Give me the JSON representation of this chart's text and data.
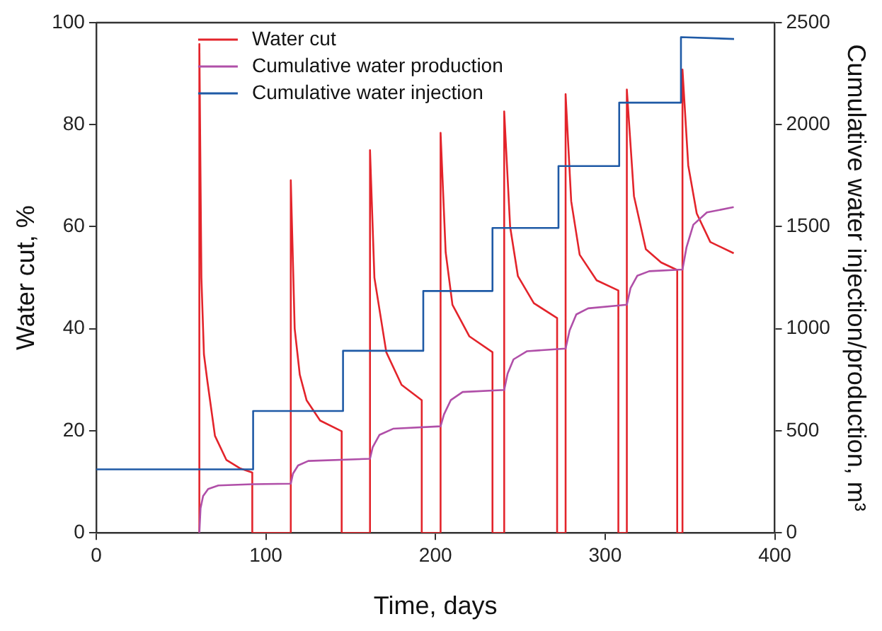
{
  "chart_data": {
    "type": "line",
    "xlabel": "Time, days",
    "ylabel": "Water cut, %",
    "y2label": "Cumulative water injection/production, m³",
    "xlim": [
      0,
      400
    ],
    "xticks": [
      0,
      100,
      200,
      300,
      400
    ],
    "ylim": [
      0,
      100
    ],
    "yticks": [
      0,
      20,
      40,
      60,
      80,
      100
    ],
    "y2lim": [
      0,
      2500
    ],
    "y2ticks": [
      0,
      500,
      1000,
      1500,
      2000,
      2500
    ],
    "grid": false,
    "legend": "top left",
    "marker": "none",
    "line_style": "solid",
    "series": [
      {
        "name": "Water cut",
        "color": "#e3242b",
        "x": [
          60.8,
          60.8,
          62,
          63.5,
          65.5,
          70,
          76.7,
          85,
          92,
          92,
          114.7,
          114.7,
          117,
          120,
          124,
          132,
          144.7,
          144.7,
          161.4,
          161.4,
          164,
          171,
          180,
          191.9,
          191.9,
          203,
          203,
          206,
          210,
          220,
          233.6,
          233.6,
          240.5,
          240.5,
          244,
          248.6,
          258,
          271.7,
          271.7,
          276.7,
          276.7,
          280,
          285,
          295,
          307.8,
          307.8,
          312.8,
          312.8,
          317,
          324,
          333,
          342.5,
          342.5,
          345.6,
          345.6,
          349,
          354,
          362,
          375.8
        ],
        "values": [
          0,
          95.8,
          50,
          35,
          29.8,
          19,
          14.3,
          12.6,
          11.8,
          0,
          0,
          69.1,
          40,
          31,
          26,
          22,
          19.9,
          0,
          0,
          75,
          50,
          35.4,
          29,
          26,
          0,
          0,
          78.4,
          55,
          44.7,
          38.5,
          35.4,
          0,
          0,
          82.6,
          60,
          50.3,
          45,
          42.1,
          0,
          0,
          86,
          65,
          54.5,
          49.5,
          47.5,
          0,
          0,
          86.9,
          66,
          55.6,
          53,
          51.5,
          0,
          0,
          90.8,
          72,
          62.6,
          57,
          54.8
        ]
      },
      {
        "name": "Cumulative water production",
        "color": "#b04fa8",
        "axis": "y2",
        "x": [
          60.8,
          61.5,
          63,
          66,
          72,
          92,
          114.7,
          116,
          119,
          125,
          161.4,
          163,
          167,
          175,
          203,
          205,
          209,
          216,
          240.5,
          242.5,
          246,
          254,
          276.7,
          279,
          283,
          290,
          312.8,
          315,
          319,
          326,
          345.6,
          348,
          352,
          360,
          375.8
        ],
        "values": [
          0,
          120,
          180,
          215,
          232,
          238,
          241,
          290,
          330,
          352,
          363,
          420,
          480,
          510,
          522,
          580,
          650,
          690,
          700,
          780,
          850,
          890,
          903,
          990,
          1070,
          1100,
          1118,
          1200,
          1260,
          1282,
          1290,
          1400,
          1510,
          1570,
          1596
        ]
      },
      {
        "name": "Cumulative water injection",
        "color": "#1f5aa6",
        "axis": "y2",
        "x": [
          0,
          92.5,
          92.5,
          145.5,
          145.5,
          192.8,
          192.8,
          233.6,
          233.6,
          272.5,
          272.5,
          308.3,
          308.3,
          344.7,
          344.7,
          376
        ],
        "values": [
          311,
          311,
          597,
          597,
          892,
          892,
          1185,
          1185,
          1494,
          1494,
          1797,
          1797,
          2108,
          2108,
          2429,
          2420
        ]
      }
    ]
  }
}
